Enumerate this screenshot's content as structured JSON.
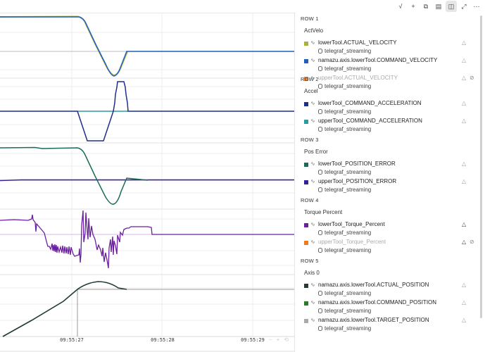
{
  "toolbar": {
    "buttons": [
      {
        "icon": "checkmark-icon",
        "glyph": "√"
      },
      {
        "icon": "plus-icon",
        "glyph": "+"
      },
      {
        "icon": "split-icon",
        "glyph": "⧉"
      },
      {
        "icon": "table-icon",
        "glyph": "▤"
      },
      {
        "icon": "sidebar-toggle-icon",
        "glyph": "◫",
        "active": true
      },
      {
        "icon": "expand-icon",
        "glyph": "⤢"
      },
      {
        "icon": "more-icon",
        "glyph": "⋯"
      }
    ]
  },
  "zoom_controls": {
    "minus": "−",
    "plus": "+",
    "reset": "⟲"
  },
  "legend": {
    "rows": [
      {
        "header": "ROW 1",
        "title": "ActVelo",
        "series": [
          {
            "name": "lowerTool.ACTUAL_VELOCITY",
            "source": "telegraf_streaming",
            "color": "#a8b23a",
            "hidden": false
          },
          {
            "name": "namazu.axis.lowerTool.COMMAND_VELOCITY",
            "source": "telegraf_streaming",
            "color": "#1f5fc0",
            "hidden": false
          },
          {
            "name": "upperTool.ACTUAL_VELOCITY",
            "source": "telegraf_streaming",
            "color": "#f08a3c",
            "hidden": true
          }
        ]
      },
      {
        "header": "ROW 2",
        "title": "Accel",
        "series": [
          {
            "name": "lowerTool_COMMAND_ACCELERATION",
            "source": "telegraf_streaming",
            "color": "#1f2f8a",
            "hidden": false
          },
          {
            "name": "upperTool_COMMAND_ACCELERATION",
            "source": "telegraf_streaming",
            "color": "#2a9ca0",
            "hidden": false
          }
        ]
      },
      {
        "header": "ROW 3",
        "title": "Pos Error",
        "series": [
          {
            "name": "lowerTool_POSITION_ERROR",
            "source": "telegraf_streaming",
            "color": "#1a6b5a",
            "hidden": false
          },
          {
            "name": "upperTool_POSITION_ERROR",
            "source": "telegraf_streaming",
            "color": "#3a1f9a",
            "hidden": false
          }
        ]
      },
      {
        "header": "ROW 4",
        "title": "Torque Percent",
        "series": [
          {
            "name": "lowerTool_Torque_Percent",
            "source": "telegraf_streaming",
            "color": "#6a1fa0",
            "hidden": false
          },
          {
            "name": "upperTool_Torque_Percent",
            "source": "telegraf_streaming",
            "color": "#f07a20",
            "hidden": true
          }
        ]
      },
      {
        "header": "ROW 5",
        "title": "Axis 0",
        "series": [
          {
            "name": "namazu.axis.lowerTool.ACTUAL_POSITION",
            "source": "telegraf_streaming",
            "color": "#2a3a3a",
            "hidden": false
          },
          {
            "name": "namazu.axis.lowerTool.COMMAND_POSITION",
            "source": "telegraf_streaming",
            "color": "#2a7a2a",
            "hidden": false
          },
          {
            "name": "namazu.axis.lowerTool.TARGET_POSITION",
            "source": "telegraf_streaming",
            "color": "#aaaaaa",
            "hidden": false
          }
        ]
      }
    ]
  },
  "chart_data": {
    "type": "line",
    "x_tick_labels": [
      "09:55:27",
      "09:55:28",
      "09:55:29"
    ],
    "grid": true,
    "panels": [
      {
        "title": "ActVelo",
        "series": [
          {
            "name": "lowerTool.ACTUAL_VELOCITY",
            "shape": "flat high, drops to negative trough near 09:55:27.4, returns to zero by 09:55:27.6"
          },
          {
            "name": "namazu.axis.lowerTool.COMMAND_VELOCITY",
            "shape": "tracks actual velocity"
          }
        ]
      },
      {
        "title": "Accel",
        "series": [
          {
            "name": "lowerTool_COMMAND_ACCELERATION",
            "shape": "zero, negative plateau 09:55:27.05–27.25, positive plateau ~27.5–27.6, zero after"
          },
          {
            "name": "upperTool_COMMAND_ACCELERATION",
            "shape": "zero throughout"
          }
        ]
      },
      {
        "title": "Pos Error",
        "series": [
          {
            "name": "lowerTool_POSITION_ERROR",
            "shape": "high flat, dips to negative trough ~27.45, settles at zero"
          },
          {
            "name": "upperTool_POSITION_ERROR",
            "shape": "zero throughout"
          }
        ]
      },
      {
        "title": "Torque Percent",
        "series": [
          {
            "name": "lowerTool_Torque_Percent",
            "shape": "noisy; positive before 27, negative dip, spikes around 27.1–27.6, flat to zero after 27.8"
          }
        ]
      },
      {
        "title": "Axis 0",
        "series": [
          {
            "name": "namazu.axis.lowerTool.ACTUAL_POSITION",
            "shape": "linear ramp up to 09:55:27, overshoot peak ~27.3, settles"
          },
          {
            "name": "namazu.axis.lowerTool.TARGET_POSITION",
            "shape": "step at 09:55:27 then flat"
          }
        ]
      }
    ]
  }
}
